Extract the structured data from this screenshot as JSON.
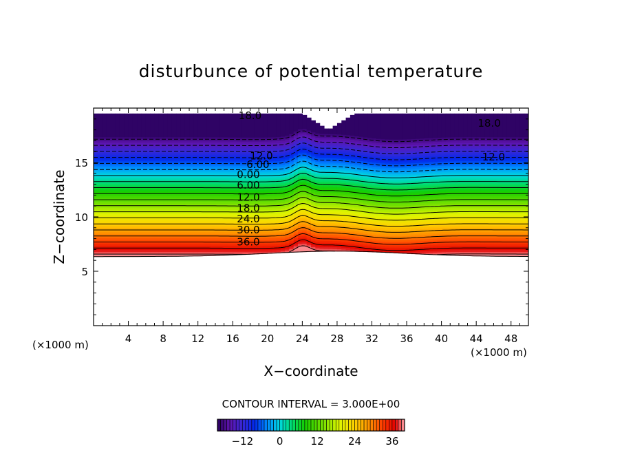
{
  "chart_data": {
    "type": "heatmap",
    "title": "disturbunce of potential temperature",
    "xlabel": "X−coordinate",
    "ylabel": "Z−coordinate",
    "x_unit_left": "(×1000 m)",
    "x_unit_right": "(×1000 m)",
    "xlim": [
      0,
      50
    ],
    "ylim": [
      0,
      20
    ],
    "x_ticks": [
      {
        "value": 4,
        "label": "4"
      },
      {
        "value": 8,
        "label": "8"
      },
      {
        "value": 12,
        "label": "12"
      },
      {
        "value": 16,
        "label": "16"
      },
      {
        "value": 20,
        "label": "20"
      },
      {
        "value": 24,
        "label": "24"
      },
      {
        "value": 28,
        "label": "28"
      },
      {
        "value": 32,
        "label": "32"
      },
      {
        "value": 36,
        "label": "36"
      },
      {
        "value": 40,
        "label": "40"
      },
      {
        "value": 44,
        "label": "44"
      },
      {
        "value": 48,
        "label": "48"
      }
    ],
    "y_ticks": [
      {
        "value": 5,
        "label": "5"
      },
      {
        "value": 10,
        "label": "10"
      },
      {
        "value": 15,
        "label": "15"
      }
    ],
    "field": {
      "lower_boundary_z": 6.7,
      "top_boundary_z": 19.5,
      "iso_z_at_zero": 13.8,
      "gradient_per_km": 5.4,
      "value_range": [
        -20,
        40
      ],
      "bump_center_x": 24,
      "bump_amplitude_z": 0.6
    },
    "contour_interval_label": "CONTOUR INTERVAL = 3.000E+00",
    "contour_interval": 3.0,
    "contour_labels": [
      {
        "text": "18.0",
        "x": 18.0,
        "z": 19.3
      },
      {
        "text": "18.0",
        "x": 45.5,
        "z": 18.6
      },
      {
        "text": "12.0",
        "x": 19.3,
        "z": 15.6
      },
      {
        "text": "12.0",
        "x": 46.0,
        "z": 15.5
      },
      {
        "text": "6.00",
        "x": 18.9,
        "z": 14.8
      },
      {
        "text": "0.00",
        "x": 17.8,
        "z": 13.9
      },
      {
        "text": "6.00",
        "x": 17.8,
        "z": 12.9
      },
      {
        "text": "12.0",
        "x": 17.8,
        "z": 11.8
      },
      {
        "text": "18.0",
        "x": 17.8,
        "z": 10.8
      },
      {
        "text": "24.0",
        "x": 17.8,
        "z": 9.8
      },
      {
        "text": "30.0",
        "x": 17.8,
        "z": 8.8
      },
      {
        "text": "36.0",
        "x": 17.8,
        "z": 7.7
      }
    ],
    "colorbar": {
      "range": [
        -20,
        40
      ],
      "ticks": [
        {
          "value": -12,
          "label": "−12"
        },
        {
          "value": 0,
          "label": "0"
        },
        {
          "value": 12,
          "label": "12"
        },
        {
          "value": 24,
          "label": "24"
        },
        {
          "value": 36,
          "label": "36"
        }
      ]
    }
  }
}
